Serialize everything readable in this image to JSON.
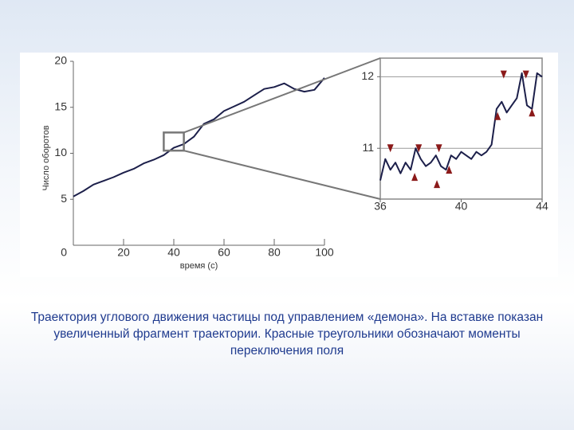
{
  "chart_data": [
    {
      "type": "line",
      "xlabel": "время (с)",
      "ylabel": "Число оборотов",
      "x": [
        0,
        4,
        8,
        12,
        16,
        20,
        24,
        28,
        32,
        36,
        40,
        44,
        48,
        52,
        56,
        60,
        64,
        68,
        72,
        76,
        80,
        84,
        88,
        92,
        96,
        100
      ],
      "values": [
        5.3,
        5.9,
        6.6,
        7.0,
        7.4,
        7.9,
        8.3,
        8.9,
        9.3,
        9.8,
        10.6,
        11.0,
        11.8,
        13.2,
        13.7,
        14.6,
        15.1,
        15.6,
        16.3,
        17.0,
        17.2,
        17.6,
        17.0,
        16.7,
        16.9,
        18.2
      ],
      "color": "#1c1f4a",
      "xlim": [
        0,
        100
      ],
      "ylim": [
        0,
        20
      ],
      "xticks": [
        0,
        20,
        40,
        60,
        80,
        100
      ],
      "yticks": [
        5,
        10,
        15,
        20
      ]
    },
    {
      "type": "line",
      "x": [
        36,
        36.25,
        36.5,
        36.75,
        37,
        37.25,
        37.5,
        37.75,
        38,
        38.25,
        38.5,
        38.75,
        39,
        39.25,
        39.5,
        39.75,
        40,
        40.25,
        40.5,
        40.75,
        41,
        41.25,
        41.5,
        41.75,
        42,
        42.25,
        42.5,
        42.75,
        43,
        43.25,
        43.5,
        43.75,
        44
      ],
      "values": [
        10.55,
        10.85,
        10.7,
        10.8,
        10.65,
        10.8,
        10.7,
        11.0,
        10.85,
        10.75,
        10.8,
        10.9,
        10.75,
        10.7,
        10.9,
        10.85,
        10.95,
        10.9,
        10.85,
        10.95,
        10.9,
        10.95,
        11.05,
        11.55,
        11.65,
        11.5,
        11.6,
        11.7,
        12.05,
        11.6,
        11.55,
        12.05,
        12.0
      ],
      "color": "#1c1f4a",
      "xlim": [
        36,
        44
      ],
      "ylim": [
        10.29,
        12.26
      ],
      "xticks": [
        36,
        40,
        44
      ],
      "yticks": [
        11,
        12
      ],
      "grid": true,
      "markers_down": {
        "x": [
          36.5,
          37.9,
          38.9,
          42.1,
          43.2
        ],
        "y": [
          11.0,
          11.0,
          11.0,
          12.03,
          12.03
        ],
        "color": "#8b1a1a"
      },
      "markers_up": {
        "x": [
          37.7,
          38.8,
          39.4,
          41.8,
          43.5
        ],
        "y": [
          10.6,
          10.5,
          10.7,
          11.45,
          11.5
        ],
        "color": "#8b1a1a"
      }
    }
  ],
  "caption": "Траектория углового движения частицы под управлением «демона». На вставке показан увеличенный фрагмент траектории. Красные треугольники обозначают моменты переключения поля"
}
